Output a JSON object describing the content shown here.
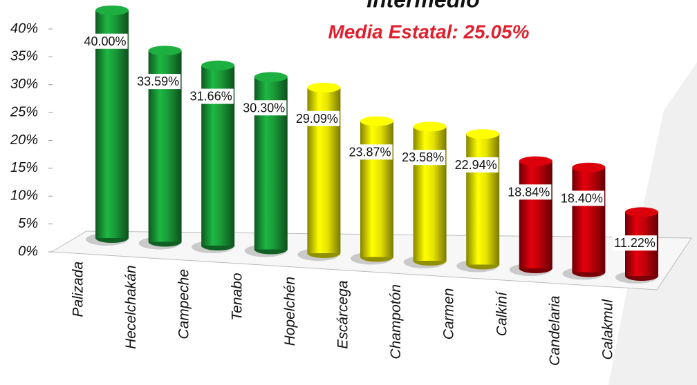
{
  "chart_data": {
    "type": "bar",
    "title": "Intermedio",
    "subtitle": "Media Estatal: 25.05%",
    "categories": [
      "Palizada",
      "Hecelchakán",
      "Campeche",
      "Tenabo",
      "Hopelchén",
      "Escárcega",
      "Champotón",
      "Carmen",
      "Calkiní",
      "Candelaria",
      "Calakmul"
    ],
    "values": [
      40.0,
      33.59,
      31.66,
      30.3,
      29.09,
      23.87,
      23.58,
      22.94,
      18.84,
      18.4,
      11.22
    ],
    "value_labels": [
      "40.00%",
      "33.59%",
      "31.66%",
      "30.30%",
      "29.09%",
      "23.87%",
      "23.58%",
      "22.94%",
      "18.84%",
      "18.40%",
      "11.22%"
    ],
    "colors": [
      "#1aa03a",
      "#1aa03a",
      "#1aa03a",
      "#1aa03a",
      "#f2f000",
      "#f2f000",
      "#f2f000",
      "#f2f000",
      "#c8000a",
      "#c8000a",
      "#c8000a"
    ],
    "ylim": [
      0,
      40
    ],
    "yticks": [
      {
        "value": 0,
        "label": "0%"
      },
      {
        "value": 5,
        "label": "5%"
      },
      {
        "value": 10,
        "label": "10%"
      },
      {
        "value": 15,
        "label": "15%"
      },
      {
        "value": 20,
        "label": "20%"
      },
      {
        "value": 25,
        "label": "25%"
      },
      {
        "value": 30,
        "label": "30%"
      },
      {
        "value": 35,
        "label": "35%"
      },
      {
        "value": 40,
        "label": "40%"
      }
    ]
  }
}
